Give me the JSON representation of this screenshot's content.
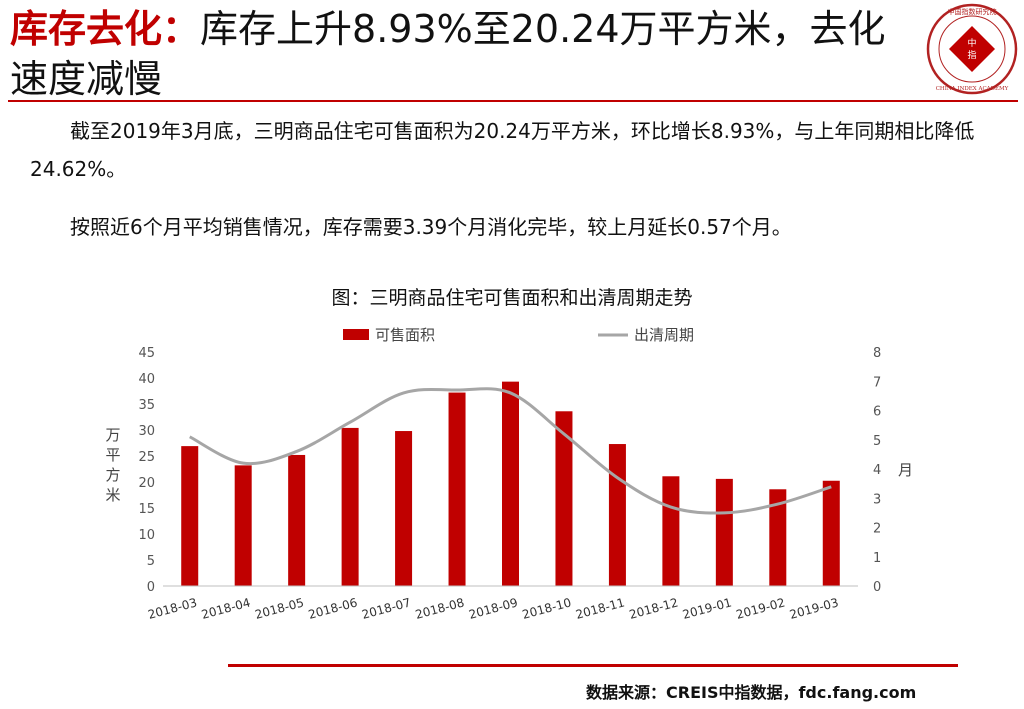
{
  "header": {
    "title_highlight": "库存去化：",
    "title_rest": "库存上升8.93%至20.24万平方米，去化速度减慢",
    "logo_text_top": "中国指数研究院",
    "logo_center": "中指",
    "logo_text_bottom": "CHINA INDEX ACADEMY"
  },
  "body": {
    "paragraph1": "截至2019年3月底，三明商品住宅可售面积为20.24万平方米，环比增长8.93%，与上年同期相比降低24.62%。",
    "paragraph2": "按照近6个月平均销售情况，库存需要3.39个月消化完毕，较上月延长0.57个月。"
  },
  "chart_caption": "图：三明商品住宅可售面积和出清周期走势",
  "chart_data": {
    "type": "bar",
    "categories": [
      "2018-03",
      "2018-04",
      "2018-05",
      "2018-06",
      "2018-07",
      "2018-08",
      "2018-09",
      "2018-10",
      "2018-11",
      "2018-12",
      "2019-01",
      "2019-02",
      "2019-03"
    ],
    "series": [
      {
        "name": "可售面积",
        "kind": "bar",
        "axis": "left",
        "values": [
          26.9,
          23.2,
          25.2,
          30.4,
          29.8,
          37.2,
          39.3,
          33.6,
          27.3,
          21.1,
          20.6,
          18.6,
          20.24
        ],
        "color": "#c00000"
      },
      {
        "name": "出清周期",
        "kind": "line",
        "axis": "right",
        "values": [
          5.1,
          4.2,
          4.6,
          5.6,
          6.6,
          6.7,
          6.6,
          5.2,
          3.7,
          2.7,
          2.5,
          2.8,
          3.39
        ],
        "color": "#a6a6a6"
      }
    ],
    "ylabel_left": "万平方米",
    "ylabel_right": "月",
    "ylim_left": [
      0,
      45
    ],
    "yticks_left": [
      0,
      5,
      10,
      15,
      20,
      25,
      30,
      35,
      40,
      45
    ],
    "ylim_right": [
      0,
      8
    ],
    "yticks_right": [
      0,
      1,
      2,
      3,
      4,
      5,
      6,
      7,
      8
    ],
    "legend_position": "top",
    "grid": false
  },
  "footer": {
    "source": "数据来源：CREIS中指数据，fdc.fang.com"
  }
}
